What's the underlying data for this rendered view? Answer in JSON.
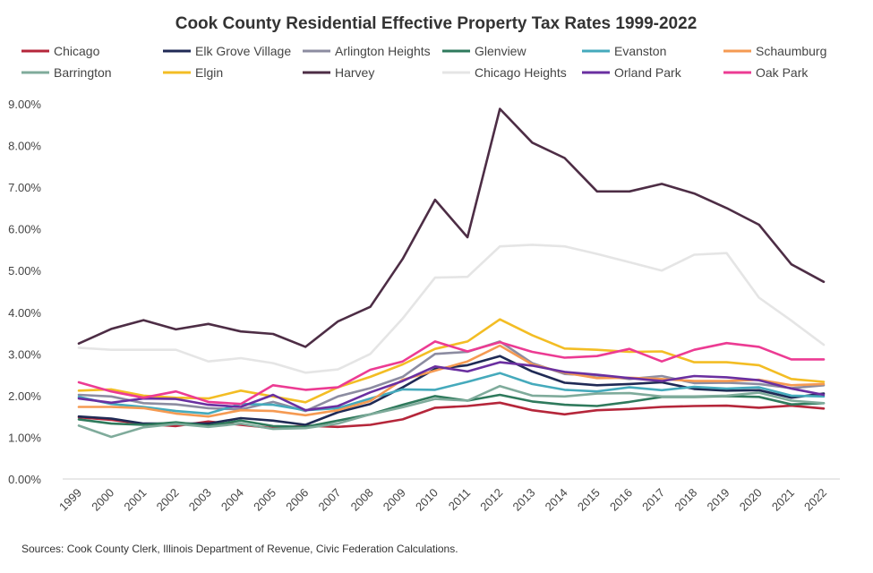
{
  "chart_data": {
    "type": "line",
    "title": "Cook County Residential Effective Property Tax Rates 1999-2022",
    "xlabel": "",
    "ylabel": "",
    "x": [
      "1999",
      "2000",
      "2001",
      "2002",
      "2003",
      "2004",
      "2005",
      "2006",
      "2007",
      "2008",
      "2009",
      "2010",
      "2011",
      "2012",
      "2013",
      "2014",
      "2015",
      "2016",
      "2017",
      "2018",
      "2019",
      "2020",
      "2021",
      "2022"
    ],
    "ylim": [
      0,
      9
    ],
    "yticks": [
      "0.00%",
      "1.00%",
      "2.00%",
      "3.00%",
      "4.00%",
      "5.00%",
      "6.00%",
      "7.00%",
      "8.00%",
      "9.00%"
    ],
    "grid": false,
    "legend_position": "top",
    "source": "Sources: Cook County Clerk, Illinois Department of Revenue, Civic Federation Calculations.",
    "series": [
      {
        "name": "Chicago",
        "color": "#b5263a",
        "values": [
          1.48,
          1.42,
          1.32,
          1.27,
          1.38,
          1.3,
          1.22,
          1.28,
          1.25,
          1.3,
          1.43,
          1.71,
          1.75,
          1.83,
          1.65,
          1.55,
          1.65,
          1.68,
          1.73,
          1.75,
          1.76,
          1.71,
          1.76,
          1.69
        ]
      },
      {
        "name": "Elk Grove Village",
        "color": "#1f2a55",
        "values": [
          1.5,
          1.45,
          1.33,
          1.33,
          1.33,
          1.46,
          1.4,
          1.3,
          1.6,
          1.8,
          2.2,
          2.64,
          2.73,
          2.95,
          2.58,
          2.31,
          2.25,
          2.28,
          2.32,
          2.16,
          2.12,
          2.13,
          1.95,
          2.05
        ]
      },
      {
        "name": "Arlington Heights",
        "color": "#8c8ca1",
        "values": [
          2.02,
          1.98,
          1.82,
          1.79,
          1.7,
          1.67,
          1.85,
          1.63,
          1.98,
          2.18,
          2.45,
          3.0,
          3.05,
          3.3,
          2.78,
          2.52,
          2.48,
          2.4,
          2.47,
          2.3,
          2.31,
          2.28,
          2.18,
          2.25
        ]
      },
      {
        "name": "Glenview",
        "color": "#2f7a5c",
        "values": [
          1.43,
          1.33,
          1.3,
          1.36,
          1.28,
          1.4,
          1.27,
          1.25,
          1.4,
          1.55,
          1.78,
          1.99,
          1.88,
          2.02,
          1.86,
          1.78,
          1.75,
          1.85,
          1.97,
          1.97,
          1.99,
          1.97,
          1.79,
          1.82
        ]
      },
      {
        "name": "Evanston",
        "color": "#45aabc",
        "values": [
          1.97,
          1.8,
          1.73,
          1.63,
          1.57,
          1.8,
          1.78,
          1.65,
          1.7,
          1.93,
          2.15,
          2.14,
          2.33,
          2.54,
          2.28,
          2.14,
          2.1,
          2.2,
          2.13,
          2.21,
          2.17,
          2.2,
          2.0,
          1.98
        ]
      },
      {
        "name": "Schaumburg",
        "color": "#f59a52",
        "values": [
          1.73,
          1.73,
          1.7,
          1.57,
          1.5,
          1.65,
          1.63,
          1.53,
          1.65,
          1.87,
          2.38,
          2.6,
          2.82,
          3.2,
          2.75,
          2.55,
          2.42,
          2.43,
          2.4,
          2.35,
          2.35,
          2.38,
          2.25,
          2.28
        ]
      },
      {
        "name": "Barrington",
        "color": "#7fab9b",
        "values": [
          1.28,
          1.01,
          1.24,
          1.32,
          1.25,
          1.33,
          1.2,
          1.22,
          1.33,
          1.55,
          1.72,
          1.92,
          1.88,
          2.23,
          2.0,
          1.98,
          2.05,
          2.06,
          1.98,
          1.98,
          2.0,
          2.07,
          1.88,
          1.82
        ]
      },
      {
        "name": "Elgin",
        "color": "#f3bd24",
        "values": [
          2.12,
          2.15,
          2.0,
          1.95,
          1.93,
          2.12,
          1.98,
          1.84,
          2.2,
          2.45,
          2.75,
          3.12,
          3.3,
          3.83,
          3.45,
          3.13,
          3.1,
          3.05,
          3.06,
          2.8,
          2.8,
          2.73,
          2.4,
          2.33
        ]
      },
      {
        "name": "Harvey",
        "color": "#4d2d45",
        "values": [
          3.25,
          3.6,
          3.81,
          3.59,
          3.72,
          3.54,
          3.48,
          3.17,
          3.78,
          4.13,
          5.28,
          6.7,
          5.8,
          8.88,
          8.07,
          7.7,
          6.9,
          6.9,
          7.08,
          6.85,
          6.5,
          6.1,
          5.15,
          4.73
        ]
      },
      {
        "name": "Chicago Heights",
        "color": "#e5e5e5",
        "values": [
          3.15,
          3.1,
          3.1,
          3.1,
          2.82,
          2.9,
          2.78,
          2.55,
          2.63,
          3.0,
          3.85,
          4.83,
          4.85,
          5.58,
          5.62,
          5.58,
          5.4,
          5.2,
          5.0,
          5.38,
          5.42,
          4.35,
          3.8,
          3.22
        ]
      },
      {
        "name": "Orland Park",
        "color": "#6a2fa0",
        "values": [
          1.93,
          1.83,
          1.93,
          1.92,
          1.78,
          1.73,
          2.02,
          1.65,
          1.75,
          2.08,
          2.35,
          2.7,
          2.58,
          2.8,
          2.72,
          2.57,
          2.5,
          2.42,
          2.35,
          2.47,
          2.44,
          2.37,
          2.17,
          2.02
        ]
      },
      {
        "name": "Oak Park",
        "color": "#ec3b93",
        "values": [
          2.32,
          2.1,
          1.95,
          2.1,
          1.85,
          1.8,
          2.25,
          2.14,
          2.2,
          2.62,
          2.82,
          3.3,
          3.06,
          3.28,
          3.05,
          2.91,
          2.95,
          3.12,
          2.82,
          3.1,
          3.26,
          3.17,
          2.87,
          2.87
        ]
      }
    ]
  }
}
